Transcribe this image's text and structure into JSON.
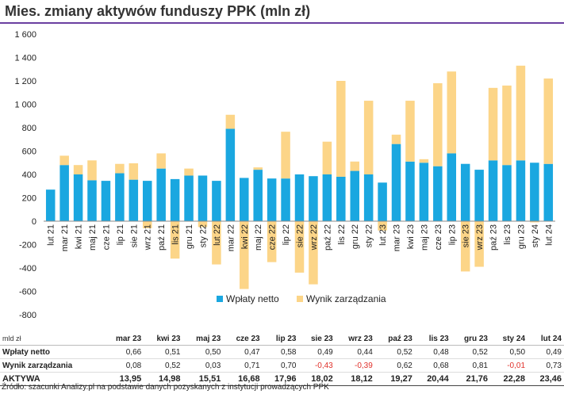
{
  "title": "Mies. zmiany aktywów funduszy PPK (mln zł)",
  "colors": {
    "title_rule": "#6a3fa0",
    "series_wplaty": "#1aa7e0",
    "series_wynik": "#fcd588",
    "negative_text": "#e0302a"
  },
  "chart_data": {
    "type": "bar",
    "stacked": true,
    "title": "Mies. zmiany aktywów funduszy PPK (mln zł)",
    "xlabel": "",
    "ylabel": "",
    "ylim": [
      -800,
      1600
    ],
    "yticks": [
      "1 600",
      "1 400",
      "1 200",
      "1 000",
      "800",
      "600",
      "400",
      "200",
      "0",
      "-200",
      "-400",
      "-600",
      "-800"
    ],
    "ytick_values": [
      1600,
      1400,
      1200,
      1000,
      800,
      600,
      400,
      200,
      0,
      -200,
      -400,
      -600,
      -800
    ],
    "grid": false,
    "legend_position": "bottom-right",
    "categories": [
      "lut 21",
      "mar 21",
      "kwi 21",
      "maj 21",
      "cze 21",
      "lip 21",
      "sie 21",
      "wrz 21",
      "paź 21",
      "lis 21",
      "gru 21",
      "sty 22",
      "lut 22",
      "mar 22",
      "kwi 22",
      "maj 22",
      "cze 22",
      "lip 22",
      "sie 22",
      "wrz 22",
      "paź 22",
      "lis 22",
      "gru 22",
      "sty 22",
      "lut 23",
      "mar 23",
      "kwi 23",
      "maj 23",
      "cze 23",
      "lip 23",
      "sie 23",
      "wrz 23",
      "paź 23",
      "lis 23",
      "gru 23",
      "sty 24",
      "lut 24"
    ],
    "series": [
      {
        "name": "Wpłaty netto",
        "values": [
          270,
          480,
          400,
          350,
          345,
          410,
          355,
          345,
          450,
          360,
          390,
          390,
          345,
          790,
          370,
          440,
          365,
          365,
          400,
          385,
          400,
          380,
          430,
          400,
          330,
          660,
          510,
          500,
          470,
          580,
          490,
          440,
          520,
          480,
          520,
          500,
          490
        ]
      },
      {
        "name": "Wynik zarządzania",
        "values": [
          0,
          80,
          80,
          170,
          0,
          80,
          140,
          -60,
          130,
          -320,
          60,
          -50,
          -370,
          120,
          -580,
          20,
          -350,
          400,
          -440,
          -540,
          280,
          820,
          80,
          630,
          -80,
          80,
          520,
          30,
          710,
          700,
          -430,
          -390,
          620,
          680,
          810,
          -10,
          730
        ]
      }
    ]
  },
  "table": {
    "unit_label": "mld zł",
    "months": [
      "mar 23",
      "kwi 23",
      "maj 23",
      "cze 23",
      "lip 23",
      "sie 23",
      "wrz 23",
      "paź 23",
      "lis 23",
      "gru 23",
      "sty 24",
      "lut 24"
    ],
    "rows": [
      {
        "label": "Wpłaty netto",
        "values": [
          "0,66",
          "0,51",
          "0,50",
          "0,47",
          "0,58",
          "0,49",
          "0,44",
          "0,52",
          "0,48",
          "0,52",
          "0,50",
          "0,49"
        ]
      },
      {
        "label": "Wynik zarządzania",
        "values": [
          "0,08",
          "0,52",
          "0,03",
          "0,71",
          "0,70",
          "-0,43",
          "-0,39",
          "0,62",
          "0,68",
          "0,81",
          "-0,01",
          "0,73"
        ]
      },
      {
        "label": "AKTYWA",
        "values": [
          "13,95",
          "14,98",
          "15,51",
          "16,68",
          "17,96",
          "18,02",
          "18,12",
          "19,27",
          "20,44",
          "21,76",
          "22,28",
          "23,46"
        ]
      }
    ]
  },
  "source": "Źródło: szacunki Analizy.pl na podstawie danych pozyskanych z instytucji prowadzących PPK"
}
